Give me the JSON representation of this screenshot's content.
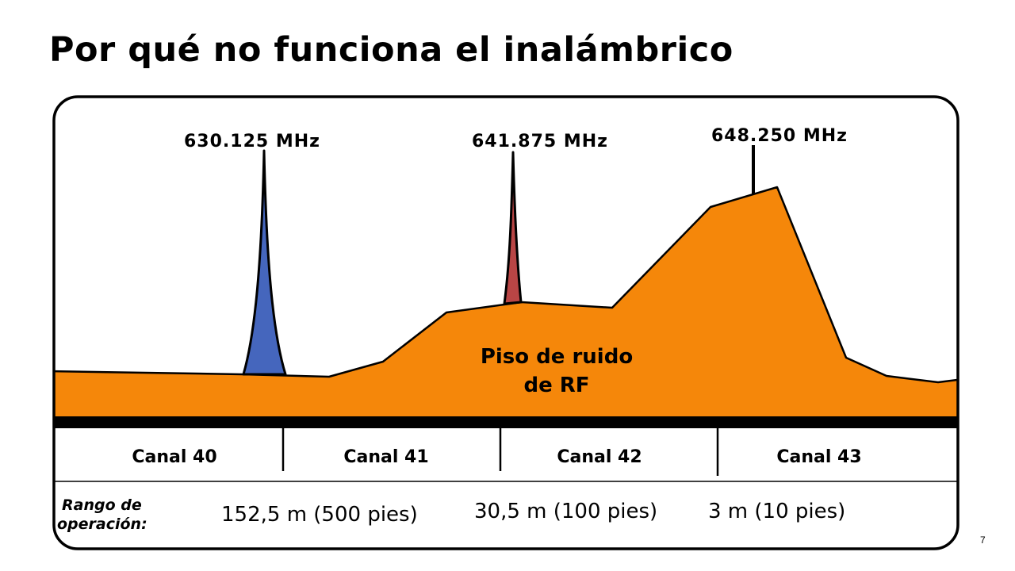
{
  "slide": {
    "title": "Por qué no funciona el inalámbrico",
    "page_number": "7"
  },
  "diagram": {
    "frequencies": [
      "630.125 MHz",
      "641.875 MHz",
      "648.250 MHz"
    ],
    "noise_floor_label": [
      "Piso de ruido",
      "de RF"
    ],
    "channels": [
      "Canal 40",
      "Canal 41",
      "Canal 42",
      "Canal 43"
    ],
    "range_label": [
      "Rango de",
      "operación:"
    ],
    "ranges": [
      "152,5 m (500 pies)",
      "30,5 m (100 pies)",
      "3 m (10 pies)"
    ]
  },
  "colors": {
    "noise_floor": "#f5870a",
    "signal_1": "#4566bd",
    "signal_2": "#b94545",
    "outline": "#000000"
  }
}
